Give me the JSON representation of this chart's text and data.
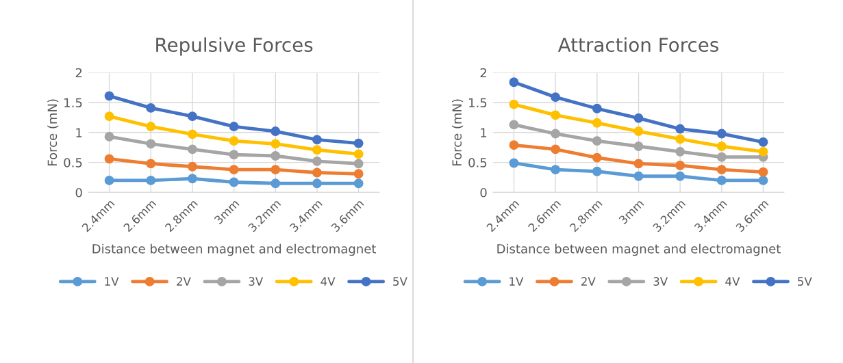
{
  "chart_data": [
    {
      "type": "line",
      "title": "Repulsive Forces",
      "xlabel": "Distance between magnet and electromagnet",
      "ylabel": "Force (mN)",
      "categories": [
        "2.4mm",
        "2.6mm",
        "2.8mm",
        "3mm",
        "3.2mm",
        "3.4mm",
        "3.6mm"
      ],
      "ylim": [
        0,
        2
      ],
      "yticks": [
        0,
        0.5,
        1,
        1.5,
        2
      ],
      "grid": true,
      "legend": "bottom",
      "marker": "circle",
      "line_style": "solid",
      "series": [
        {
          "name": "1V",
          "color": "#5b9bd5",
          "values": [
            0.2,
            0.2,
            0.23,
            0.17,
            0.15,
            0.15,
            0.15
          ]
        },
        {
          "name": "2V",
          "color": "#ed7d31",
          "values": [
            0.56,
            0.48,
            0.43,
            0.38,
            0.38,
            0.33,
            0.31
          ]
        },
        {
          "name": "3V",
          "color": "#a5a5a5",
          "values": [
            0.93,
            0.81,
            0.72,
            0.63,
            0.61,
            0.52,
            0.48
          ]
        },
        {
          "name": "4V",
          "color": "#ffc000",
          "values": [
            1.27,
            1.1,
            0.97,
            0.86,
            0.81,
            0.71,
            0.64
          ]
        },
        {
          "name": "5V",
          "color": "#4472c4",
          "values": [
            1.61,
            1.41,
            1.27,
            1.1,
            1.02,
            0.88,
            0.82
          ]
        }
      ]
    },
    {
      "type": "line",
      "title": "Attraction Forces",
      "xlabel": "Distance between magnet and electromagnet",
      "ylabel": "Force (mN)",
      "categories": [
        "2.4mm",
        "2.6mm",
        "2.8mm",
        "3mm",
        "3.2mm",
        "3.4mm",
        "3.6mm"
      ],
      "ylim": [
        0,
        2
      ],
      "yticks": [
        0,
        0.5,
        1,
        1.5,
        2
      ],
      "grid": true,
      "legend": "bottom",
      "marker": "circle",
      "line_style": "solid",
      "series": [
        {
          "name": "1V",
          "color": "#5b9bd5",
          "values": [
            0.49,
            0.38,
            0.35,
            0.27,
            0.27,
            0.2,
            0.2
          ]
        },
        {
          "name": "2V",
          "color": "#ed7d31",
          "values": [
            0.79,
            0.72,
            0.58,
            0.48,
            0.45,
            0.38,
            0.34
          ]
        },
        {
          "name": "3V",
          "color": "#a5a5a5",
          "values": [
            1.13,
            0.98,
            0.86,
            0.77,
            0.68,
            0.59,
            0.59
          ]
        },
        {
          "name": "4V",
          "color": "#ffc000",
          "values": [
            1.47,
            1.29,
            1.16,
            1.02,
            0.89,
            0.77,
            0.68
          ]
        },
        {
          "name": "5V",
          "color": "#4472c4",
          "values": [
            1.84,
            1.59,
            1.4,
            1.24,
            1.06,
            0.98,
            0.84
          ]
        }
      ]
    }
  ]
}
